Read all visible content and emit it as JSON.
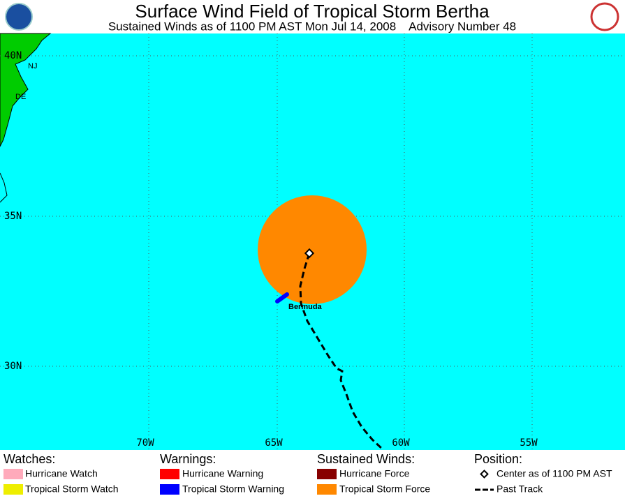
{
  "header": {
    "title": "Surface Wind Field of Tropical Storm Bertha",
    "subtitle": "Sustained Winds as of 1100 PM AST Mon Jul 14, 2008    Advisory Number 48"
  },
  "map": {
    "lat_labels": [
      "40N",
      "35N",
      "30N"
    ],
    "lon_labels": [
      "70W",
      "65W",
      "60W",
      "55W"
    ],
    "places": [
      "NJ",
      "DE",
      "Bermuda"
    ]
  },
  "legend": [
    {
      "heading": "Watches:",
      "items": [
        "Hurricane Watch",
        "Tropical Storm Watch"
      ]
    },
    {
      "heading": "Warnings:",
      "items": [
        "Hurricane Warning",
        "Tropical Storm Warning"
      ]
    },
    {
      "heading": "Sustained Winds:",
      "items": [
        "Hurricane Force",
        "Tropical Storm Force"
      ]
    },
    {
      "heading": "Position:",
      "items": [
        "Center as of 1100 PM AST",
        "Past Track"
      ]
    }
  ]
}
